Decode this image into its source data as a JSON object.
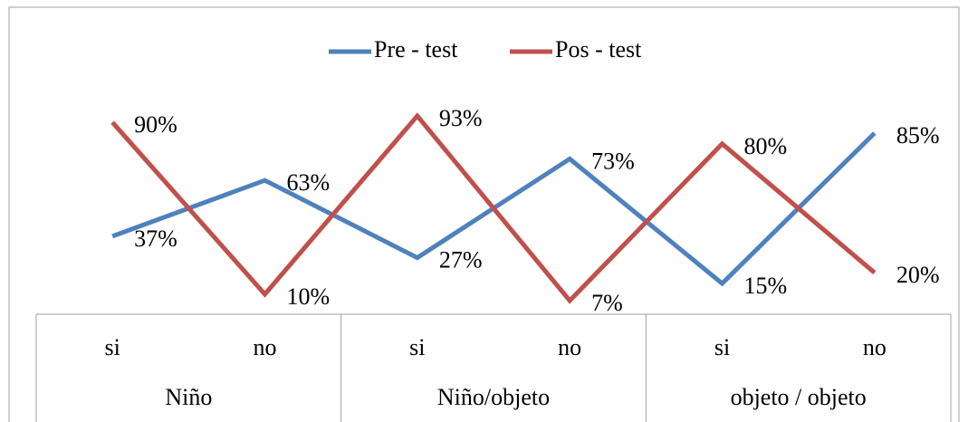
{
  "chart_data": {
    "type": "line",
    "categories": [
      "si",
      "no",
      "si",
      "no",
      "si",
      "no"
    ],
    "groups": [
      "Niño",
      "Niño/objeto",
      "objeto / objeto"
    ],
    "series": [
      {
        "name": "Pre - test",
        "color": "#4f81bd",
        "values": [
          37,
          63,
          27,
          73,
          15,
          85
        ],
        "value_labels": [
          "37%",
          "63%",
          "27%",
          "73%",
          "15%",
          "85%"
        ]
      },
      {
        "name": "Pos - test",
        "color": "#c0504d",
        "values": [
          90,
          10,
          93,
          7,
          80,
          20
        ],
        "value_labels": [
          "90%",
          "10%",
          "93%",
          "7%",
          "80%",
          "20%"
        ]
      }
    ],
    "legend": "top"
  }
}
